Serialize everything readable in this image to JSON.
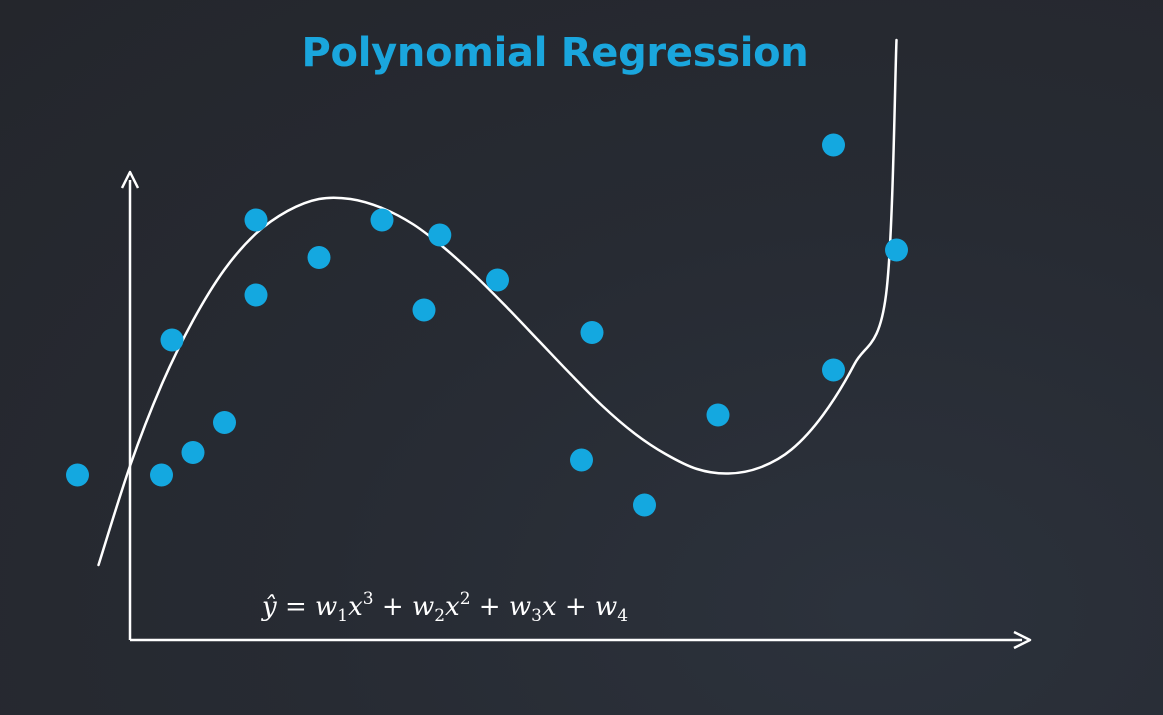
{
  "title": "Polynomial Regression",
  "equation": {
    "prefix": "ŷ = ",
    "terms": [
      {
        "coef": "w",
        "sub": "1",
        "var": "x",
        "sup": "3",
        "op": " + "
      },
      {
        "coef": "w",
        "sub": "2",
        "var": "x",
        "sup": "2",
        "op": " + "
      },
      {
        "coef": "w",
        "sub": "3",
        "var": "x",
        "sup": "",
        "op": " + "
      },
      {
        "coef": "w",
        "sub": "4",
        "var": "",
        "sup": "",
        "op": ""
      }
    ]
  },
  "colors": {
    "accent": "#1aa6dd",
    "point": "#14a8e0",
    "curve": "#ffffff",
    "axis": "#ffffff"
  },
  "chart_data": {
    "type": "scatter",
    "title": "Polynomial Regression",
    "xlabel": "",
    "ylabel": "",
    "xlim": [
      -0.5,
      9
    ],
    "ylim": [
      0,
      4.6
    ],
    "grid": false,
    "legend": "none",
    "points": [
      {
        "x": -0.5,
        "y": 1.1
      },
      {
        "x": 0.3,
        "y": 1.1
      },
      {
        "x": 0.4,
        "y": 2.0
      },
      {
        "x": 0.6,
        "y": 1.25
      },
      {
        "x": 0.9,
        "y": 1.45
      },
      {
        "x": 1.2,
        "y": 2.3
      },
      {
        "x": 1.2,
        "y": 2.8
      },
      {
        "x": 1.8,
        "y": 2.55
      },
      {
        "x": 2.4,
        "y": 2.8
      },
      {
        "x": 2.8,
        "y": 2.2
      },
      {
        "x": 2.95,
        "y": 2.7
      },
      {
        "x": 3.5,
        "y": 2.4
      },
      {
        "x": 4.3,
        "y": 1.2
      },
      {
        "x": 4.4,
        "y": 2.05
      },
      {
        "x": 4.9,
        "y": 0.9
      },
      {
        "x": 5.6,
        "y": 1.5
      },
      {
        "x": 6.7,
        "y": 1.8
      },
      {
        "x": 6.7,
        "y": 3.3
      },
      {
        "x": 7.3,
        "y": 2.6
      }
    ],
    "fit_curve": {
      "name": "",
      "x": [
        -0.3,
        0.0,
        0.3,
        0.6,
        0.9,
        1.2,
        1.5,
        1.8,
        2.1,
        2.4,
        2.7,
        3.0,
        3.3,
        3.6,
        3.9,
        4.2,
        4.5,
        4.8,
        5.1,
        5.4,
        5.7,
        6.0,
        6.3,
        6.6,
        6.9,
        7.2
      ],
      "y": [
        0.5,
        1.16,
        1.7,
        2.13,
        2.47,
        2.71,
        2.86,
        2.94,
        2.94,
        2.88,
        2.77,
        2.61,
        2.42,
        2.21,
        1.99,
        1.77,
        1.56,
        1.38,
        1.24,
        1.14,
        1.11,
        1.15,
        1.27,
        1.5,
        1.84,
        2.3
      ]
    },
    "fit_curve_extension": {
      "x": [
        7.3
      ],
      "y": [
        4.0
      ]
    }
  }
}
